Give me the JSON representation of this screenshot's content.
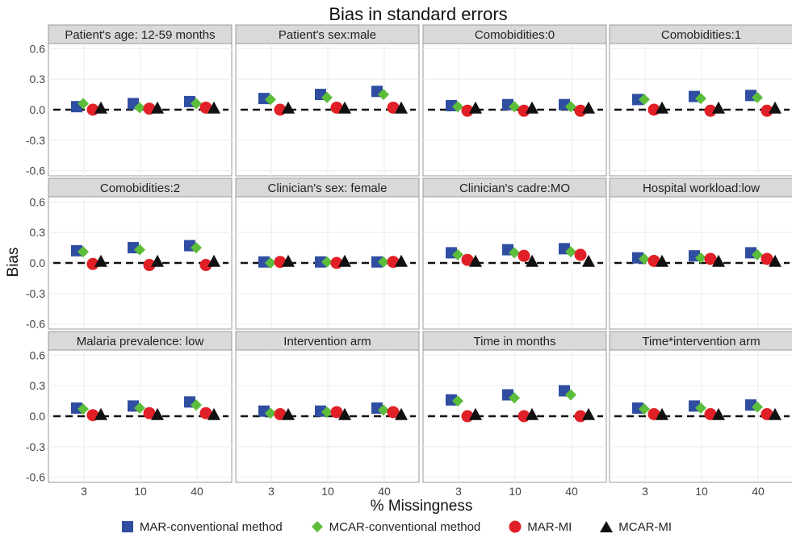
{
  "chart_data": {
    "type": "scatter",
    "title": "Bias in  standard errors",
    "xlabel": "% Missingness",
    "ylabel": "Bias",
    "categories": [
      "3",
      "10",
      "40"
    ],
    "ylim": [
      -0.65,
      0.65
    ],
    "yticks": [
      "0.6",
      "0.3",
      "0.0",
      "-0.3",
      "-0.6"
    ],
    "ytick_values": [
      0.6,
      0.3,
      0.0,
      -0.3,
      -0.6
    ],
    "reference_line": 0,
    "grid": true,
    "legend_position": "bottom",
    "series": [
      {
        "name": "MAR-conventional method",
        "color": "#2f4ea2",
        "marker": "square-icon"
      },
      {
        "name": "MCAR-conventional method",
        "color": "#5cbd3a",
        "marker": "diamond-icon"
      },
      {
        "name": "MAR-MI",
        "color": "#e01f26",
        "marker": "circle-icon"
      },
      {
        "name": "MCAR-MI",
        "color": "#111111",
        "marker": "triangle-icon"
      }
    ],
    "panels": [
      {
        "title": "Patient's age: 12-59 months",
        "values": [
          [
            0.03,
            0.06,
            0.08
          ],
          [
            0.06,
            0.02,
            0.06
          ],
          [
            0.0,
            0.01,
            0.02
          ],
          [
            0.01,
            0.01,
            0.01
          ]
        ]
      },
      {
        "title": "Patient's sex:male",
        "values": [
          [
            0.11,
            0.15,
            0.18
          ],
          [
            0.1,
            0.12,
            0.15
          ],
          [
            0.0,
            0.02,
            0.02
          ],
          [
            0.01,
            0.01,
            0.01
          ]
        ]
      },
      {
        "title": "Comobidities:0",
        "values": [
          [
            0.04,
            0.05,
            0.05
          ],
          [
            0.03,
            0.03,
            0.03
          ],
          [
            -0.01,
            -0.01,
            -0.01
          ],
          [
            0.01,
            0.01,
            0.01
          ]
        ]
      },
      {
        "title": "Comobidities:1",
        "values": [
          [
            0.1,
            0.13,
            0.14
          ],
          [
            0.1,
            0.11,
            0.12
          ],
          [
            0.0,
            -0.01,
            -0.01
          ],
          [
            0.01,
            0.01,
            0.01
          ]
        ]
      },
      {
        "title": "Comobidities:2",
        "values": [
          [
            0.12,
            0.15,
            0.17
          ],
          [
            0.11,
            0.13,
            0.15
          ],
          [
            -0.01,
            -0.02,
            -0.02
          ],
          [
            0.01,
            0.01,
            0.01
          ]
        ]
      },
      {
        "title": "Clinician's sex: female",
        "values": [
          [
            0.01,
            0.01,
            0.01
          ],
          [
            0.0,
            0.01,
            0.01
          ],
          [
            0.01,
            0.0,
            0.01
          ],
          [
            0.01,
            0.01,
            0.01
          ]
        ]
      },
      {
        "title": "Clinician's cadre:MO",
        "values": [
          [
            0.1,
            0.13,
            0.14
          ],
          [
            0.08,
            0.1,
            0.11
          ],
          [
            0.03,
            0.07,
            0.08
          ],
          [
            0.01,
            0.01,
            0.01
          ]
        ]
      },
      {
        "title": "Hospital workload:low",
        "values": [
          [
            0.05,
            0.07,
            0.1
          ],
          [
            0.04,
            0.05,
            0.08
          ],
          [
            0.02,
            0.04,
            0.04
          ],
          [
            0.01,
            0.01,
            0.01
          ]
        ]
      },
      {
        "title": "Malaria prevalence: low",
        "values": [
          [
            0.08,
            0.1,
            0.14
          ],
          [
            0.07,
            0.08,
            0.11
          ],
          [
            0.01,
            0.03,
            0.03
          ],
          [
            0.01,
            0.01,
            0.01
          ]
        ]
      },
      {
        "title": "Intervention arm",
        "values": [
          [
            0.05,
            0.05,
            0.08
          ],
          [
            0.03,
            0.04,
            0.06
          ],
          [
            0.02,
            0.04,
            0.04
          ],
          [
            0.01,
            0.01,
            0.01
          ]
        ]
      },
      {
        "title": "Time in months",
        "values": [
          [
            0.16,
            0.21,
            0.25
          ],
          [
            0.15,
            0.18,
            0.21
          ],
          [
            0.0,
            0.0,
            0.0
          ],
          [
            0.01,
            0.01,
            0.01
          ]
        ]
      },
      {
        "title": "Time*intervention arm",
        "values": [
          [
            0.08,
            0.1,
            0.11
          ],
          [
            0.07,
            0.08,
            0.09
          ],
          [
            0.02,
            0.02,
            0.02
          ],
          [
            0.01,
            0.01,
            0.01
          ]
        ]
      }
    ]
  }
}
